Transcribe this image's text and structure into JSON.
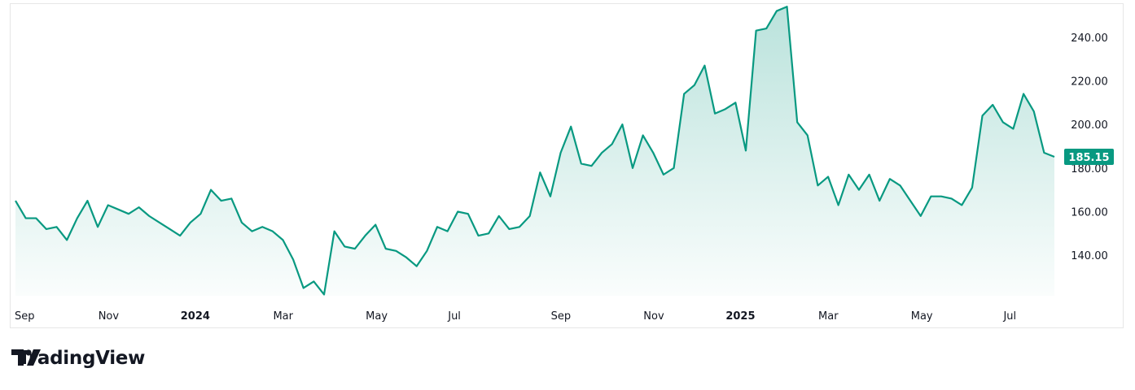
{
  "colors": {
    "line": "#089981",
    "fill_top": "#089981",
    "price_tag": "#089981",
    "text": "#131722"
  },
  "chart_data": {
    "type": "area",
    "x_ticks": [
      {
        "label": "Sep",
        "bold": false,
        "idx": 0
      },
      {
        "label": "Nov",
        "bold": false,
        "idx": 9
      },
      {
        "label": "2024",
        "bold": true,
        "idx": 17
      },
      {
        "label": "Mar",
        "bold": false,
        "idx": 26
      },
      {
        "label": "May",
        "bold": false,
        "idx": 35
      },
      {
        "label": "Jul",
        "bold": false,
        "idx": 43
      },
      {
        "label": "Sep",
        "bold": false,
        "idx": 53
      },
      {
        "label": "Nov",
        "bold": false,
        "idx": 62
      },
      {
        "label": "2025",
        "bold": true,
        "idx": 70
      },
      {
        "label": "Mar",
        "bold": false,
        "idx": 79
      },
      {
        "label": "May",
        "bold": false,
        "idx": 88
      },
      {
        "label": "Jul",
        "bold": false,
        "idx": 97
      }
    ],
    "y_ticks": [
      "140.00",
      "160.00",
      "180.00",
      "200.00",
      "220.00",
      "240.00"
    ],
    "ylim": [
      119,
      256
    ],
    "values": [
      165,
      157,
      157,
      152,
      153,
      147,
      157,
      165,
      153,
      163,
      161,
      159,
      162,
      158,
      155,
      152,
      149,
      155,
      159,
      170,
      165,
      166,
      155,
      151,
      153,
      151,
      147,
      138,
      125,
      128,
      122,
      151,
      144,
      143,
      149,
      154,
      143,
      142,
      139,
      135,
      142,
      153,
      151,
      160,
      159,
      149,
      150,
      158,
      152,
      153,
      158,
      178,
      167,
      187,
      199,
      182,
      181,
      187,
      191,
      200,
      180,
      195,
      187,
      177,
      180,
      214,
      218,
      227,
      205,
      207,
      210,
      188,
      243,
      244,
      252,
      254,
      201,
      195,
      172,
      176,
      163,
      177,
      170,
      177,
      165,
      175,
      172,
      165,
      158,
      167,
      167,
      166,
      163,
      171,
      204,
      209,
      201,
      198,
      214,
      206,
      187,
      185.15
    ],
    "last_price_label": "185.15",
    "last_price": 185.15
  },
  "brand": {
    "name": "TradingView",
    "logo_icon": "tradingview-logo-icon"
  }
}
